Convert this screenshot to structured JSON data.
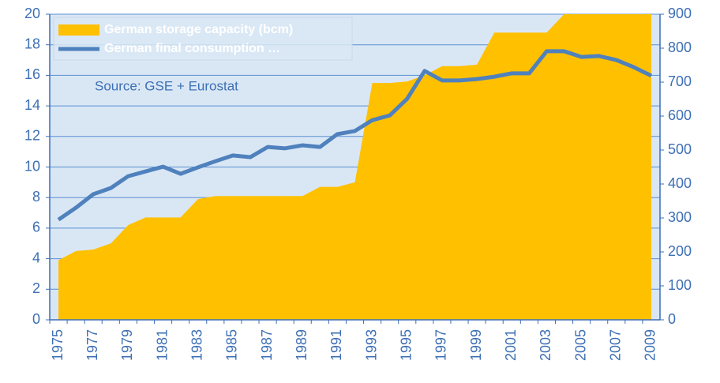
{
  "chart_data": {
    "type": "area-line",
    "annotation": "Source: GSE + Eurostat",
    "categories": [
      "1975",
      null,
      "1977",
      null,
      "1979",
      null,
      "1981",
      null,
      "1983",
      null,
      "1985",
      null,
      "1987",
      null,
      "1989",
      null,
      "1991",
      null,
      "1993",
      null,
      "1995",
      null,
      "1997",
      null,
      "1999",
      null,
      "2001",
      null,
      "2003",
      null,
      "2005",
      null,
      "2007",
      null,
      "2009"
    ],
    "series": [
      {
        "name": "German storage capacity (bcm)",
        "color": "#ffc000",
        "type": "area",
        "values": [
          3.9,
          4.5,
          4.6,
          5.0,
          6.2,
          6.7,
          6.7,
          6.7,
          7.9,
          8.1,
          8.1,
          8.1,
          8.1,
          8.1,
          8.1,
          8.7,
          8.7,
          9.0,
          15.5,
          15.5,
          15.6,
          16.0,
          16.6,
          16.6,
          16.7,
          18.8,
          18.8,
          18.8,
          18.8,
          20,
          20,
          20,
          20,
          20,
          20
        ]
      },
      {
        "name": "German final consumption …",
        "color": "#4f81bd",
        "type": "line",
        "axis": "y2",
        "values": [
          295,
          330,
          370,
          388,
          423,
          437,
          451,
          430,
          449,
          467,
          484,
          479,
          509,
          505,
          514,
          509,
          547,
          556,
          588,
          602,
          651,
          733,
          705,
          705,
          709,
          716,
          726,
          726,
          791,
          791,
          774,
          777,
          765,
          744,
          719
        ]
      }
    ],
    "ylim": [
      0,
      20
    ],
    "yticks": [
      0,
      2,
      4,
      6,
      8,
      10,
      12,
      14,
      16,
      18,
      20
    ],
    "y2lim": [
      0,
      900
    ],
    "y2ticks": [
      0,
      100,
      200,
      300,
      400,
      500,
      600,
      700,
      800,
      900
    ],
    "grid": true
  }
}
